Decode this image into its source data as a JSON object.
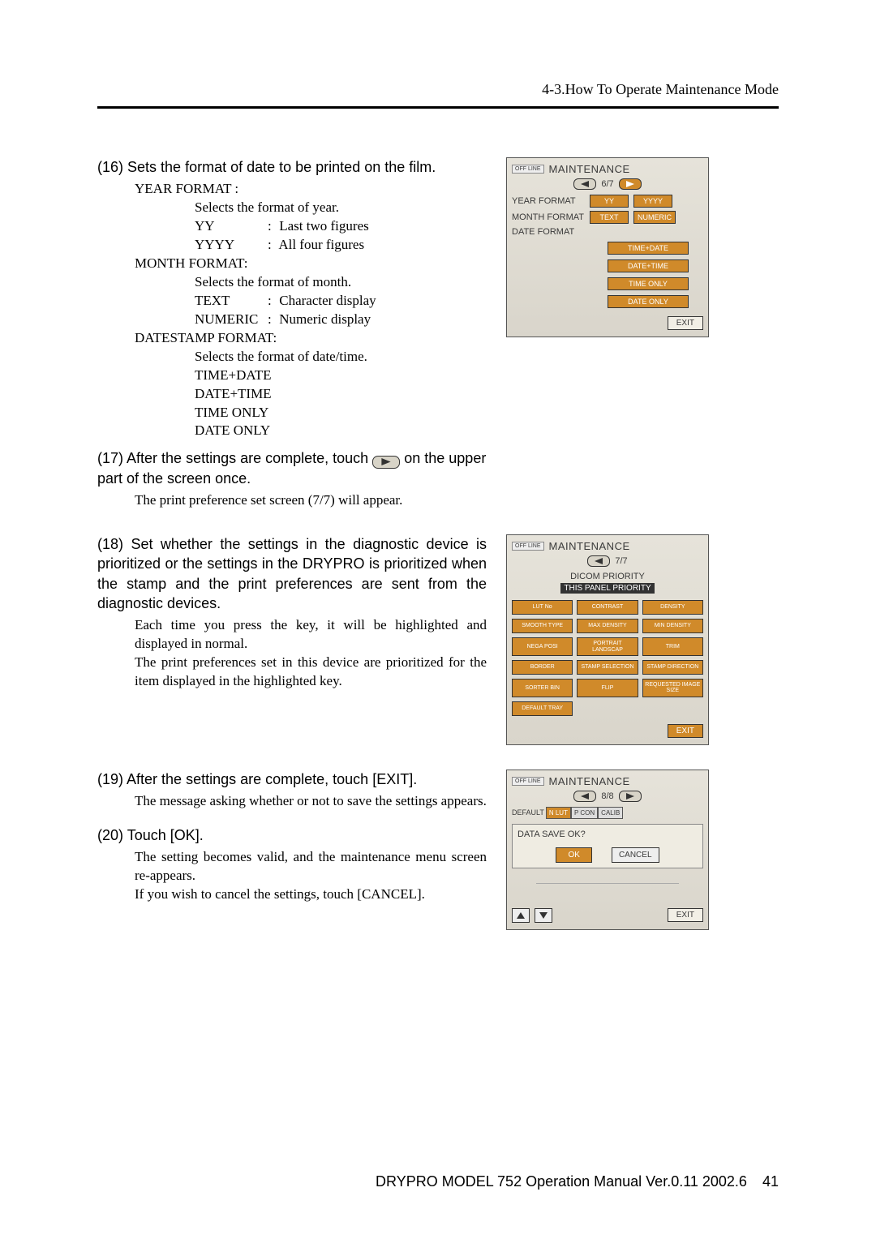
{
  "header": {
    "section": "4-3.How To Operate Maintenance Mode"
  },
  "steps": {
    "s16": {
      "num": "(16)",
      "text": "Sets the format of date to be printed on the film.",
      "year": {
        "label": "YEAR FORMAT :",
        "desc": "Selects the format of year.",
        "opt1k": "YY",
        "opt1v": "Last two figures",
        "opt2k": "YYYY",
        "opt2v": "All four figures"
      },
      "month": {
        "label": "MONTH FORMAT:",
        "desc": "Selects the format of month.",
        "opt1k": "TEXT",
        "opt1v": "Character display",
        "opt2k": "NUMERIC",
        "opt2v": "Numeric display"
      },
      "ds": {
        "label": "DATESTAMP FORMAT:",
        "desc": "Selects the format of date/time.",
        "o1": "TIME+DATE",
        "o2": "DATE+TIME",
        "o3": "TIME ONLY",
        "o4": "DATE ONLY"
      }
    },
    "s17": {
      "num": "(17)",
      "pre": "After the settings are complete, touch",
      "post": "on the upper part of the screen once.",
      "sub": "The print preference set screen (7/7) will appear."
    },
    "s18": {
      "num": "(18)",
      "text": "Set whether the settings in the diagnostic device is prioritized or the settings in the DRYPRO is prioritized when the stamp and the print preferences are sent from the diagnostic devices.",
      "sub1": "Each time you press the key, it will be highlighted and displayed in normal.",
      "sub2": "The print preferences set in this device are prioritized for the item displayed in the highlighted key."
    },
    "s19": {
      "num": "(19)",
      "text": "After the settings are complete, touch [EXIT].",
      "sub": "The message asking whether or not to save the settings appears."
    },
    "s20": {
      "num": "(20)",
      "text": "Touch [OK].",
      "sub1": "The setting becomes valid, and the maintenance menu screen re-appears.",
      "sub2": "If you wish to cancel the settings, touch [CANCEL]."
    }
  },
  "panels": {
    "common": {
      "off": "OFF LINE",
      "title": "MAINTENANCE",
      "exit": "EXIT"
    },
    "p1": {
      "page": "6/7",
      "yearLabel": "YEAR FORMAT",
      "yy": "YY",
      "yyyy": "YYYY",
      "monthLabel": "MONTH FORMAT",
      "text": "TEXT",
      "numeric": "NUMERIC",
      "dateLabel": "DATE FORMAT",
      "d1": "TIME+DATE",
      "d2": "DATE+TIME",
      "d3": "TIME ONLY",
      "d4": "DATE ONLY"
    },
    "p2": {
      "page": "7/7",
      "h1": "DICOM PRIORITY",
      "h2": "THIS PANEL PRIORITY",
      "chips": [
        "LUT No",
        "CONTRAST",
        "DENSITY",
        "SMOOTH TYPE",
        "MAX DENSITY",
        "MIN DENSITY",
        "NEGA POSI",
        "PORTRAIT LANDSCAP",
        "TRIM",
        "BORDER",
        "STAMP SELECTION",
        "STAMP DIRECTION",
        "SORTER BIN",
        "FLIP",
        "REQUESTED IMAGE SIZE",
        "DEFAULT TRAY"
      ]
    },
    "p3": {
      "page": "8/8",
      "defl": "DEFAULT",
      "tabs": [
        "N LUT",
        "P CON",
        "CALIB"
      ],
      "msg": "DATA SAVE OK?",
      "ok": "OK",
      "cancel": "CANCEL"
    }
  },
  "footer": {
    "text": "DRYPRO MODEL 752 Operation Manual Ver.0.11 2002.6",
    "page": "41"
  },
  "colors": {
    "highlight": "#d08a2a",
    "panelBg": "#e0ddd3"
  }
}
